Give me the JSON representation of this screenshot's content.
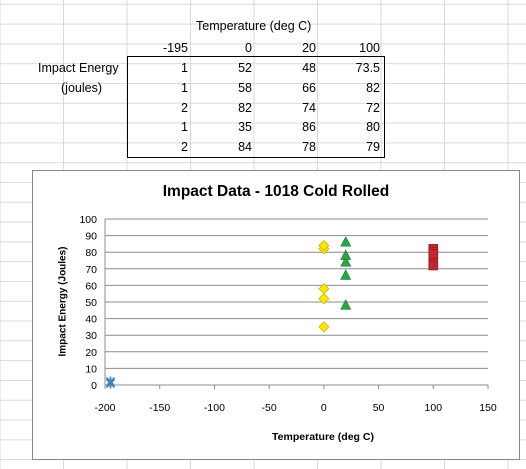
{
  "sheet": {
    "header_label": "Temperature (deg C)",
    "row_label_1": "Impact Energy",
    "row_label_2": "(joules)",
    "temps": [
      "-195",
      "0",
      "20",
      "100"
    ],
    "rows": [
      [
        "1",
        "52",
        "48",
        "73.5"
      ],
      [
        "1",
        "58",
        "66",
        "82"
      ],
      [
        "2",
        "82",
        "74",
        "72"
      ],
      [
        "1",
        "35",
        "86",
        "80"
      ],
      [
        "2",
        "84",
        "78",
        "79"
      ]
    ]
  },
  "chart_data": {
    "type": "scatter",
    "title": "Impact Data - 1018 Cold Rolled",
    "xlabel": "Temperature (deg C)",
    "ylabel": "Impact Energy (Joules)",
    "xlim": [
      -200,
      150
    ],
    "ylim": [
      0,
      100
    ],
    "xticks": [
      -200,
      -150,
      -100,
      -50,
      0,
      50,
      100,
      150
    ],
    "yticks": [
      0,
      10,
      20,
      30,
      40,
      50,
      60,
      70,
      80,
      90,
      100
    ],
    "grid": true,
    "series": [
      {
        "marker": "x",
        "color": "#4a7ebb",
        "x": [
          -195,
          -195,
          -195,
          -195,
          -195
        ],
        "y": [
          1,
          1,
          2,
          1,
          2
        ]
      },
      {
        "marker": "diamond",
        "color": "#ffe600",
        "x": [
          0,
          0,
          0,
          0,
          0
        ],
        "y": [
          52,
          58,
          82,
          35,
          84
        ]
      },
      {
        "marker": "triangle",
        "color": "#2aa34a",
        "x": [
          20,
          20,
          20,
          20,
          20
        ],
        "y": [
          48,
          66,
          74,
          86,
          78
        ]
      },
      {
        "marker": "square",
        "color": "#c0282f",
        "x": [
          100,
          100,
          100,
          100,
          100
        ],
        "y": [
          73.5,
          82,
          72,
          80,
          79
        ]
      }
    ]
  }
}
